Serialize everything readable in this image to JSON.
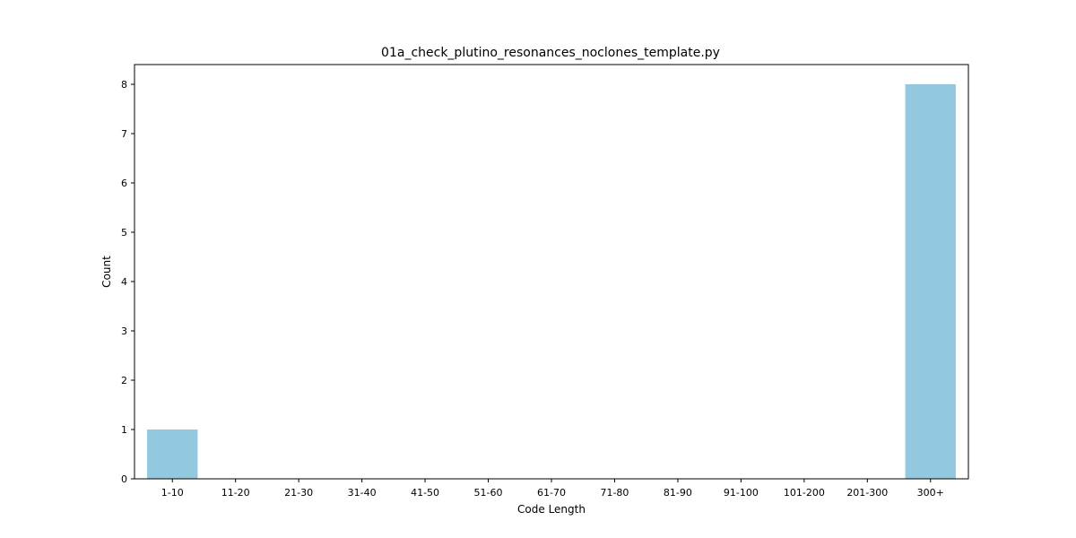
{
  "chart_data": {
    "type": "bar",
    "title": "01a_check_plutino_resonances_noclones_template.py",
    "xlabel": "Code Length",
    "ylabel": "Count",
    "categories": [
      "1-10",
      "11-20",
      "21-30",
      "31-40",
      "41-50",
      "51-60",
      "61-70",
      "71-80",
      "81-90",
      "91-100",
      "101-200",
      "201-300",
      "300+"
    ],
    "values": [
      1,
      0,
      0,
      0,
      0,
      0,
      0,
      0,
      0,
      0,
      0,
      0,
      8
    ],
    "yticks": [
      0,
      1,
      2,
      3,
      4,
      5,
      6,
      7,
      8
    ],
    "ylim": [
      0,
      8.4
    ],
    "grid": false,
    "legend": "none",
    "bar_color": "#92c9de"
  }
}
